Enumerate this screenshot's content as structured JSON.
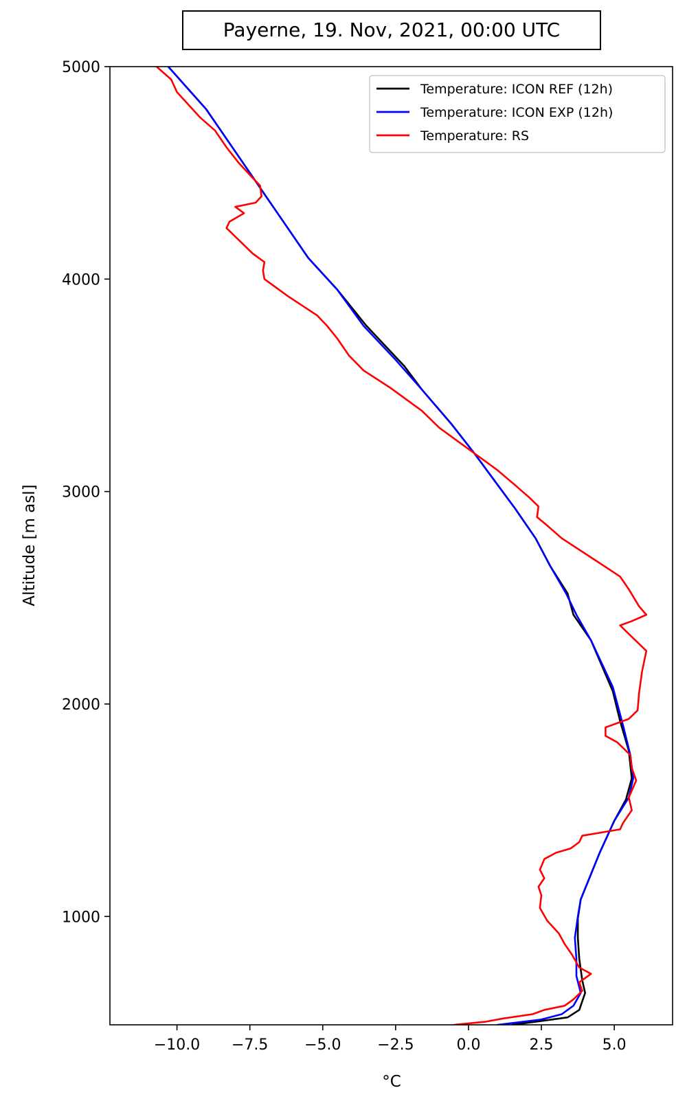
{
  "chart_data": {
    "type": "line",
    "title": "Payerne, 19. Nov, 2021, 00:00 UTC",
    "xlabel": "°C",
    "ylabel": "Altitude [m asl]",
    "xlim": [
      -12.3,
      7.0
    ],
    "ylim": [
      490,
      5000
    ],
    "xticks": [
      -10.0,
      -7.5,
      -5.0,
      -2.5,
      0.0,
      2.5,
      5.0
    ],
    "xtick_labels": [
      "−10.0",
      "−7.5",
      "−5.0",
      "−2.5",
      "0.0",
      "2.5",
      "5.0"
    ],
    "yticks": [
      1000,
      2000,
      3000,
      4000,
      5000
    ],
    "ytick_labels": [
      "1000",
      "2000",
      "3000",
      "4000",
      "5000"
    ],
    "grid": false,
    "legend_position": "top-right",
    "series": [
      {
        "name": "Temperature: ICON REF (12h)",
        "color": "#000000",
        "points": [
          [
            1.5,
            490
          ],
          [
            2.6,
            510
          ],
          [
            3.4,
            525
          ],
          [
            3.8,
            560
          ],
          [
            4.0,
            640
          ],
          [
            3.9,
            700
          ],
          [
            3.8,
            800
          ],
          [
            3.75,
            900
          ],
          [
            3.75,
            990
          ],
          [
            3.85,
            1080
          ],
          [
            4.5,
            1300
          ],
          [
            5.0,
            1450
          ],
          [
            5.4,
            1550
          ],
          [
            5.6,
            1650
          ],
          [
            5.5,
            1780
          ],
          [
            5.2,
            1920
          ],
          [
            4.95,
            2060
          ],
          [
            4.2,
            2300
          ],
          [
            3.6,
            2420
          ],
          [
            3.4,
            2520
          ],
          [
            2.8,
            2650
          ],
          [
            2.3,
            2780
          ],
          [
            1.6,
            2920
          ],
          [
            0.9,
            3050
          ],
          [
            0.2,
            3180
          ],
          [
            -0.6,
            3320
          ],
          [
            -1.6,
            3480
          ],
          [
            -2.2,
            3590
          ],
          [
            -3.5,
            3780
          ],
          [
            -4.5,
            3950
          ],
          [
            -5.5,
            4100
          ],
          [
            -6.4,
            4280
          ],
          [
            -7.2,
            4440
          ],
          [
            -8.0,
            4600
          ],
          [
            -9.0,
            4800
          ],
          [
            -10.3,
            5000
          ]
        ]
      },
      {
        "name": "Temperature: ICON EXP (12h)",
        "color": "#0000ff",
        "points": [
          [
            1.0,
            490
          ],
          [
            2.5,
            515
          ],
          [
            3.2,
            540
          ],
          [
            3.6,
            580
          ],
          [
            3.85,
            640
          ],
          [
            3.7,
            720
          ],
          [
            3.7,
            800
          ],
          [
            3.65,
            900
          ],
          [
            3.75,
            1000
          ],
          [
            3.85,
            1080
          ],
          [
            4.5,
            1300
          ],
          [
            5.0,
            1450
          ],
          [
            5.5,
            1560
          ],
          [
            5.65,
            1650
          ],
          [
            5.55,
            1760
          ],
          [
            5.3,
            1900
          ],
          [
            4.95,
            2080
          ],
          [
            4.2,
            2300
          ],
          [
            3.7,
            2420
          ],
          [
            3.35,
            2520
          ],
          [
            2.8,
            2650
          ],
          [
            2.3,
            2780
          ],
          [
            1.6,
            2920
          ],
          [
            0.9,
            3050
          ],
          [
            0.2,
            3180
          ],
          [
            -0.6,
            3320
          ],
          [
            -1.6,
            3480
          ],
          [
            -2.5,
            3620
          ],
          [
            -3.6,
            3780
          ],
          [
            -4.5,
            3950
          ],
          [
            -5.5,
            4100
          ],
          [
            -6.4,
            4280
          ],
          [
            -7.2,
            4440
          ],
          [
            -8.0,
            4600
          ],
          [
            -9.0,
            4800
          ],
          [
            -10.3,
            5000
          ]
        ]
      },
      {
        "name": "Temperature: RS",
        "color": "#ff0000",
        "points": [
          [
            -0.5,
            490
          ],
          [
            0.6,
            505
          ],
          [
            1.2,
            520
          ],
          [
            2.2,
            540
          ],
          [
            2.6,
            560
          ],
          [
            3.3,
            580
          ],
          [
            3.6,
            610
          ],
          [
            3.9,
            650
          ],
          [
            3.8,
            690
          ],
          [
            4.2,
            730
          ],
          [
            3.8,
            760
          ],
          [
            3.55,
            820
          ],
          [
            3.3,
            870
          ],
          [
            3.1,
            920
          ],
          [
            2.7,
            980
          ],
          [
            2.45,
            1040
          ],
          [
            2.5,
            1100
          ],
          [
            2.4,
            1140
          ],
          [
            2.6,
            1180
          ],
          [
            2.45,
            1220
          ],
          [
            2.6,
            1270
          ],
          [
            3.0,
            1300
          ],
          [
            3.5,
            1320
          ],
          [
            3.8,
            1350
          ],
          [
            3.9,
            1380
          ],
          [
            5.2,
            1410
          ],
          [
            5.3,
            1440
          ],
          [
            5.6,
            1500
          ],
          [
            5.5,
            1560
          ],
          [
            5.75,
            1640
          ],
          [
            5.6,
            1700
          ],
          [
            5.55,
            1760
          ],
          [
            5.1,
            1820
          ],
          [
            4.7,
            1850
          ],
          [
            4.7,
            1890
          ],
          [
            5.5,
            1930
          ],
          [
            5.8,
            1970
          ],
          [
            5.85,
            2050
          ],
          [
            5.95,
            2150
          ],
          [
            6.1,
            2250
          ],
          [
            5.5,
            2330
          ],
          [
            5.2,
            2370
          ],
          [
            5.6,
            2390
          ],
          [
            6.1,
            2420
          ],
          [
            5.85,
            2460
          ],
          [
            5.5,
            2540
          ],
          [
            5.2,
            2600
          ],
          [
            4.2,
            2690
          ],
          [
            3.2,
            2780
          ],
          [
            2.7,
            2840
          ],
          [
            2.35,
            2880
          ],
          [
            2.4,
            2930
          ],
          [
            2.1,
            2970
          ],
          [
            1.6,
            3030
          ],
          [
            1.0,
            3100
          ],
          [
            0.3,
            3170
          ],
          [
            -0.4,
            3240
          ],
          [
            -1.0,
            3300
          ],
          [
            -1.6,
            3380
          ],
          [
            -2.4,
            3460
          ],
          [
            -2.7,
            3490
          ],
          [
            -3.6,
            3570
          ],
          [
            -4.1,
            3640
          ],
          [
            -4.5,
            3720
          ],
          [
            -4.85,
            3780
          ],
          [
            -5.2,
            3830
          ],
          [
            -6.2,
            3920
          ],
          [
            -7.0,
            4000
          ],
          [
            -7.05,
            4040
          ],
          [
            -7.0,
            4080
          ],
          [
            -7.4,
            4120
          ],
          [
            -7.7,
            4160
          ],
          [
            -8.3,
            4240
          ],
          [
            -8.2,
            4270
          ],
          [
            -7.7,
            4310
          ],
          [
            -8.0,
            4340
          ],
          [
            -7.3,
            4360
          ],
          [
            -7.1,
            4390
          ],
          [
            -7.15,
            4440
          ],
          [
            -7.5,
            4490
          ],
          [
            -7.9,
            4550
          ],
          [
            -8.3,
            4620
          ],
          [
            -8.7,
            4700
          ],
          [
            -9.2,
            4760
          ],
          [
            -9.6,
            4820
          ],
          [
            -10.0,
            4880
          ],
          [
            -10.2,
            4940
          ],
          [
            -10.7,
            5000
          ]
        ]
      }
    ]
  }
}
